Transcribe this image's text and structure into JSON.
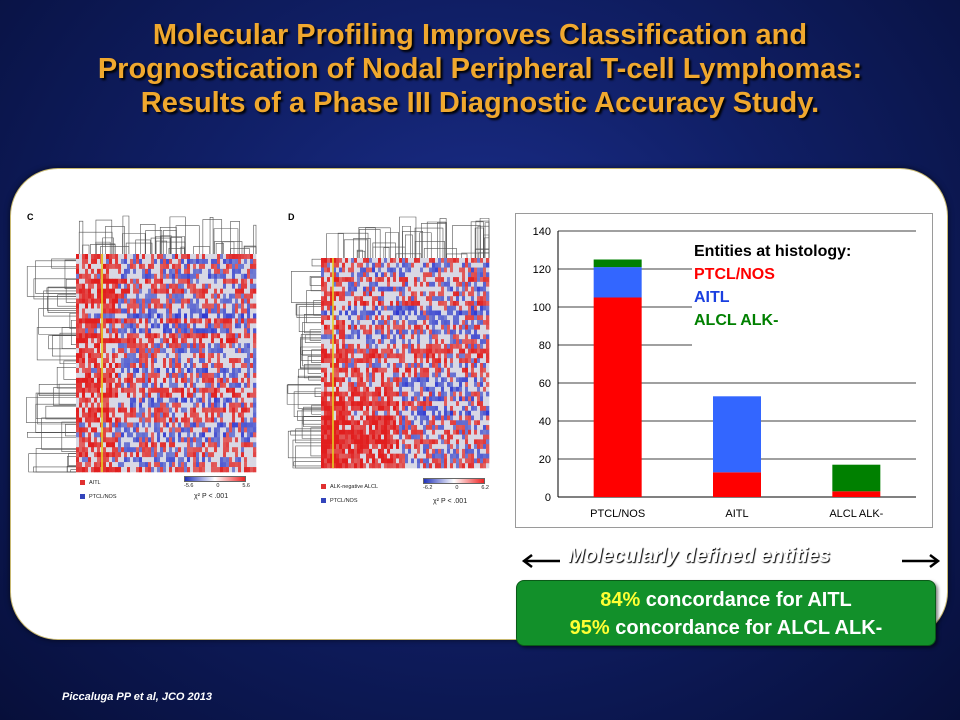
{
  "slide": {
    "title_lines": [
      "Molecular Profiling Improves Classification and",
      "Prognostication of Nodal Peripheral T-cell Lymphomas:",
      "Results of a Phase III Diagnostic Accuracy Study."
    ],
    "citation": "Piccaluga PP et al, JCO 2013",
    "colors": {
      "title": "#f0a82e",
      "background": "#101f66",
      "concordance_box": "#12902a",
      "percent_highlight": "#ffff33"
    }
  },
  "heatmaps": [
    {
      "panel_letter": "C",
      "legend": [
        {
          "label": "AITL",
          "color": "#e03030"
        },
        {
          "label": "PTCL/NOS",
          "color": "#3344bb"
        }
      ],
      "scale": {
        "min": "-5.6",
        "mid": "0",
        "max": "5.6"
      },
      "chi_text": "χ² P < .001"
    },
    {
      "panel_letter": "D",
      "legend": [
        {
          "label": "ALK-negative ALCL",
          "color": "#e03030"
        },
        {
          "label": "PTCL/NOS",
          "color": "#3344bb"
        }
      ],
      "scale": {
        "min": "-6.2",
        "mid": "0",
        "max": "6.2"
      },
      "chi_text": "χ² P < .001"
    }
  ],
  "chart_data": {
    "type": "bar",
    "stacked": true,
    "categories": [
      "PTCL/NOS",
      "AITL",
      "ALCL ALK-"
    ],
    "series": [
      {
        "name": "PTCL/NOS",
        "color": "#ff0000",
        "values": [
          105,
          13,
          3
        ]
      },
      {
        "name": "AITL",
        "color": "#3366ff",
        "values": [
          16,
          40,
          0
        ]
      },
      {
        "name": "ALCL ALK-",
        "color": "#008000",
        "values": [
          4,
          0,
          14
        ]
      }
    ],
    "ylim": [
      0,
      140
    ],
    "yticks": [
      "0",
      "20",
      "40",
      "60",
      "80",
      "100",
      "120",
      "140"
    ],
    "grid": true,
    "legend_title": "Entities at histology:",
    "legend_placement": "top-right"
  },
  "footer": {
    "molecular_label": "Molecularly  defined entities",
    "concordance": [
      {
        "pct": "84%",
        "text": " concordance for AITL"
      },
      {
        "pct": "95%",
        "text": " concordance for ALCL ALK-"
      }
    ]
  }
}
